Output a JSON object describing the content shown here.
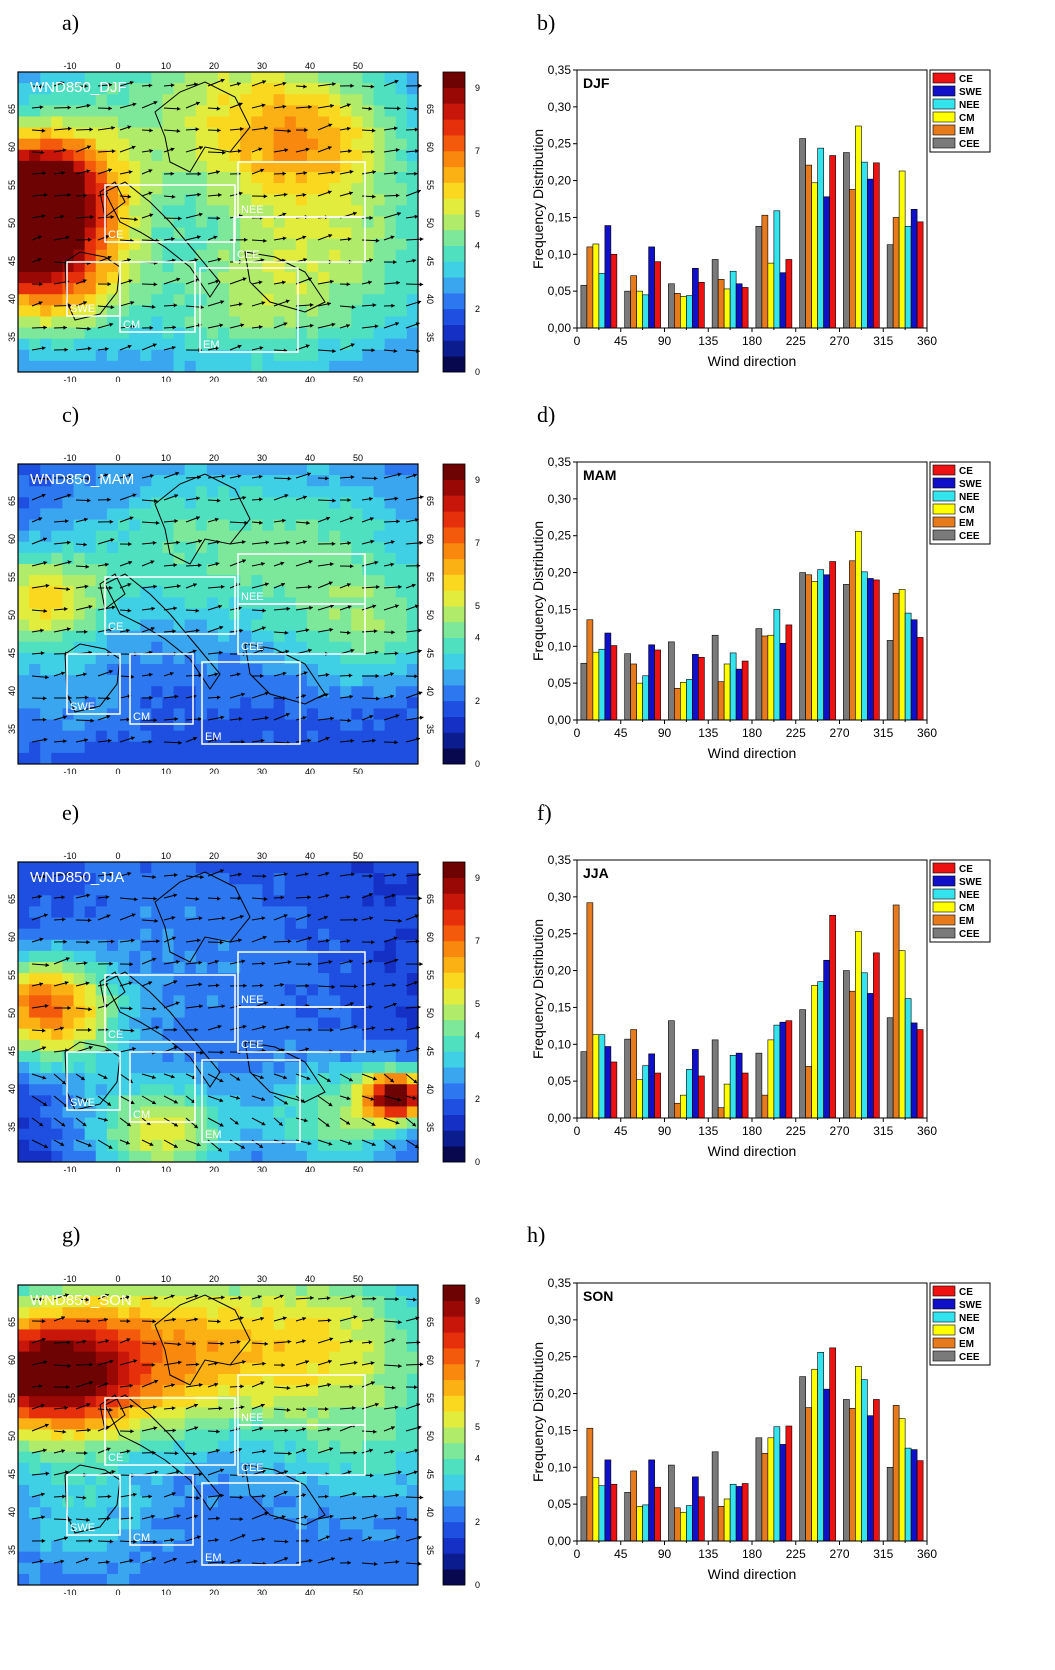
{
  "panels": [
    {
      "map_letter": "a)",
      "bar_letter": "b)",
      "map_title": "WND850_DJF",
      "season": "DJF"
    },
    {
      "map_letter": "c)",
      "bar_letter": "d)",
      "map_title": "WND850_MAM",
      "season": "MAM"
    },
    {
      "map_letter": "e)",
      "bar_letter": "f)",
      "map_title": "WND850_JJA",
      "season": "JJA"
    },
    {
      "map_letter": "g)",
      "bar_letter": "h)",
      "map_title": "WND850_SON",
      "season": "SON"
    }
  ],
  "map": {
    "lon_ticks": [
      "-10",
      "0",
      "10",
      "20",
      "30",
      "40",
      "50"
    ],
    "lat_ticks": [
      "35",
      "40",
      "45",
      "50",
      "55",
      "60",
      "65"
    ],
    "colorbar_ticks": [
      "0",
      "2",
      "4",
      "5",
      "7",
      "9"
    ],
    "colorbar_colors": [
      "#08084f",
      "#0b1c8f",
      "#1530c4",
      "#1f4fe0",
      "#2d78f0",
      "#3ba6f0",
      "#3fd0e6",
      "#4fe0c0",
      "#7de79a",
      "#b0ec6a",
      "#e2ec3c",
      "#fbd820",
      "#fbb014",
      "#f8880e",
      "#f45a0c",
      "#e6300b",
      "#c8160a",
      "#9a0806",
      "#6e0303"
    ],
    "regions": [
      "CE",
      "SWE",
      "NEE",
      "CM",
      "EM",
      "CEE"
    ]
  },
  "chart_data": [
    {
      "type": "bar",
      "title": "DJF",
      "xlabel": "Wind direction",
      "ylabel": "Frequency Distribution",
      "ylim": [
        0,
        0.35
      ],
      "xlim": [
        0,
        360
      ],
      "x_ticks": [
        "0",
        "45",
        "90",
        "135",
        "180",
        "225",
        "270",
        "315",
        "360"
      ],
      "y_ticks": [
        "0,00",
        "0,05",
        "0,10",
        "0,15",
        "0,20",
        "0,25",
        "0,30",
        "0,35"
      ],
      "x": [
        22.5,
        67.5,
        112.5,
        157.5,
        202.5,
        247.5,
        292.5,
        337.5
      ],
      "legend": "top-right",
      "series": [
        {
          "name": "CEE",
          "color": "#7a7a7a",
          "values": [
            0.058,
            0.05,
            0.06,
            0.093,
            0.138,
            0.257,
            0.238,
            0.113
          ]
        },
        {
          "name": "EM",
          "color": "#e87a1e",
          "values": [
            0.11,
            0.071,
            0.047,
            0.066,
            0.153,
            0.221,
            0.188,
            0.15
          ]
        },
        {
          "name": "CM",
          "color": "#ffff00",
          "values": [
            0.114,
            0.05,
            0.043,
            0.053,
            0.088,
            0.197,
            0.274,
            0.213
          ]
        },
        {
          "name": "NEE",
          "color": "#33e4ee",
          "values": [
            0.074,
            0.045,
            0.044,
            0.077,
            0.159,
            0.244,
            0.225,
            0.138
          ]
        },
        {
          "name": "SWE",
          "color": "#1010c8",
          "values": [
            0.139,
            0.11,
            0.081,
            0.06,
            0.075,
            0.178,
            0.202,
            0.161
          ]
        },
        {
          "name": "CE",
          "color": "#ee1111",
          "values": [
            0.1,
            0.09,
            0.062,
            0.055,
            0.093,
            0.234,
            0.224,
            0.144
          ]
        }
      ]
    },
    {
      "type": "bar",
      "title": "MAM",
      "xlabel": "Wind direction",
      "ylabel": "Frequency Distribution",
      "ylim": [
        0,
        0.35
      ],
      "xlim": [
        0,
        360
      ],
      "x_ticks": [
        "0",
        "45",
        "90",
        "135",
        "180",
        "225",
        "270",
        "315",
        "360"
      ],
      "y_ticks": [
        "0,00",
        "0,05",
        "0,10",
        "0,15",
        "0,20",
        "0,25",
        "0,30",
        "0,35"
      ],
      "x": [
        22.5,
        67.5,
        112.5,
        157.5,
        202.5,
        247.5,
        292.5,
        337.5
      ],
      "legend": "top-right",
      "series": [
        {
          "name": "CEE",
          "color": "#7a7a7a",
          "values": [
            0.077,
            0.09,
            0.106,
            0.115,
            0.124,
            0.2,
            0.184,
            0.108
          ]
        },
        {
          "name": "EM",
          "color": "#e87a1e",
          "values": [
            0.136,
            0.076,
            0.043,
            0.052,
            0.114,
            0.197,
            0.216,
            0.172
          ]
        },
        {
          "name": "CM",
          "color": "#ffff00",
          "values": [
            0.092,
            0.05,
            0.051,
            0.076,
            0.115,
            0.188,
            0.256,
            0.177
          ]
        },
        {
          "name": "NEE",
          "color": "#33e4ee",
          "values": [
            0.096,
            0.06,
            0.055,
            0.091,
            0.15,
            0.204,
            0.201,
            0.145
          ]
        },
        {
          "name": "SWE",
          "color": "#1010c8",
          "values": [
            0.118,
            0.102,
            0.089,
            0.069,
            0.104,
            0.197,
            0.192,
            0.136
          ]
        },
        {
          "name": "CE",
          "color": "#ee1111",
          "values": [
            0.101,
            0.095,
            0.085,
            0.08,
            0.129,
            0.215,
            0.19,
            0.112
          ]
        }
      ]
    },
    {
      "type": "bar",
      "title": "JJA",
      "xlabel": "Wind direction",
      "ylabel": "Frequency Distribution",
      "ylim": [
        0,
        0.35
      ],
      "xlim": [
        0,
        360
      ],
      "x_ticks": [
        "0",
        "45",
        "90",
        "135",
        "180",
        "225",
        "270",
        "315",
        "360"
      ],
      "y_ticks": [
        "0,00",
        "0,05",
        "0,10",
        "0,15",
        "0,20",
        "0,25",
        "0,30",
        "0,35"
      ],
      "x": [
        22.5,
        67.5,
        112.5,
        157.5,
        202.5,
        247.5,
        292.5,
        337.5
      ],
      "legend": "top-right",
      "series": [
        {
          "name": "CEE",
          "color": "#7a7a7a",
          "values": [
            0.09,
            0.107,
            0.132,
            0.106,
            0.088,
            0.147,
            0.2,
            0.136
          ]
        },
        {
          "name": "EM",
          "color": "#e87a1e",
          "values": [
            0.292,
            0.12,
            0.02,
            0.014,
            0.031,
            0.07,
            0.172,
            0.289
          ]
        },
        {
          "name": "CM",
          "color": "#ffff00",
          "values": [
            0.113,
            0.052,
            0.031,
            0.046,
            0.106,
            0.18,
            0.253,
            0.227
          ]
        },
        {
          "name": "NEE",
          "color": "#33e4ee",
          "values": [
            0.113,
            0.071,
            0.066,
            0.085,
            0.126,
            0.185,
            0.197,
            0.162
          ]
        },
        {
          "name": "SWE",
          "color": "#1010c8",
          "values": [
            0.097,
            0.087,
            0.093,
            0.088,
            0.13,
            0.214,
            0.169,
            0.129
          ]
        },
        {
          "name": "CE",
          "color": "#ee1111",
          "values": [
            0.076,
            0.061,
            0.057,
            0.061,
            0.132,
            0.275,
            0.224,
            0.12
          ]
        }
      ]
    },
    {
      "type": "bar",
      "title": "SON",
      "xlabel": "Wind direction",
      "ylabel": "Frequency Distribution",
      "ylim": [
        0,
        0.35
      ],
      "xlim": [
        0,
        360
      ],
      "x_ticks": [
        "0",
        "45",
        "90",
        "135",
        "180",
        "225",
        "270",
        "315",
        "360"
      ],
      "y_ticks": [
        "0,00",
        "0,05",
        "0,10",
        "0,15",
        "0,20",
        "0,25",
        "0,30",
        "0,35"
      ],
      "x": [
        22.5,
        67.5,
        112.5,
        157.5,
        202.5,
        247.5,
        292.5,
        337.5
      ],
      "legend": "top-right",
      "series": [
        {
          "name": "CEE",
          "color": "#7a7a7a",
          "values": [
            0.06,
            0.066,
            0.103,
            0.121,
            0.14,
            0.223,
            0.192,
            0.1
          ]
        },
        {
          "name": "EM",
          "color": "#e87a1e",
          "values": [
            0.153,
            0.095,
            0.045,
            0.047,
            0.119,
            0.181,
            0.18,
            0.184
          ]
        },
        {
          "name": "CM",
          "color": "#ffff00",
          "values": [
            0.086,
            0.047,
            0.039,
            0.057,
            0.14,
            0.233,
            0.237,
            0.166
          ]
        },
        {
          "name": "NEE",
          "color": "#33e4ee",
          "values": [
            0.075,
            0.049,
            0.048,
            0.077,
            0.155,
            0.256,
            0.219,
            0.126
          ]
        },
        {
          "name": "SWE",
          "color": "#1010c8",
          "values": [
            0.11,
            0.11,
            0.087,
            0.074,
            0.131,
            0.206,
            0.17,
            0.124
          ]
        },
        {
          "name": "CE",
          "color": "#ee1111",
          "values": [
            0.077,
            0.073,
            0.06,
            0.078,
            0.156,
            0.262,
            0.192,
            0.109
          ]
        }
      ]
    }
  ]
}
